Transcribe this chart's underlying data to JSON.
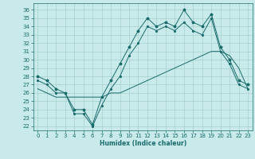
{
  "xlabel": "Humidex (Indice chaleur)",
  "ylabel": "",
  "bg_color": "#c8eaea",
  "line_color": "#1a6b6b",
  "grid_color": "#a8d0d0",
  "x_ticks": [
    0,
    1,
    2,
    3,
    4,
    5,
    6,
    7,
    8,
    9,
    10,
    11,
    12,
    13,
    14,
    15,
    16,
    17,
    18,
    19,
    20,
    21,
    22,
    23
  ],
  "y_ticks": [
    22,
    23,
    24,
    25,
    26,
    27,
    28,
    29,
    30,
    31,
    32,
    33,
    34,
    35,
    36
  ],
  "ylim": [
    21.5,
    36.8
  ],
  "xlim": [
    -0.5,
    23.5
  ],
  "series1_x": [
    0,
    1,
    2,
    3,
    4,
    5,
    6,
    7,
    8,
    9,
    10,
    11,
    12,
    13,
    14,
    15,
    16,
    17,
    18,
    19,
    20,
    21,
    22,
    23
  ],
  "series1_y": [
    28.0,
    27.5,
    26.5,
    26.0,
    24.0,
    24.0,
    22.2,
    25.5,
    27.5,
    29.5,
    31.5,
    33.5,
    35.0,
    34.0,
    34.5,
    34.0,
    36.0,
    34.5,
    34.0,
    35.5,
    31.5,
    30.0,
    27.5,
    27.0
  ],
  "series2_x": [
    0,
    1,
    2,
    3,
    4,
    5,
    6,
    7,
    8,
    9,
    10,
    11,
    12,
    13,
    14,
    15,
    16,
    17,
    18,
    19,
    20,
    21,
    22,
    23
  ],
  "series2_y": [
    27.5,
    27.0,
    26.0,
    26.0,
    23.5,
    23.5,
    22.0,
    24.5,
    26.5,
    28.0,
    30.5,
    32.0,
    34.0,
    33.5,
    34.0,
    33.5,
    34.5,
    33.5,
    33.0,
    35.0,
    31.0,
    29.5,
    27.0,
    26.5
  ],
  "series3_x": [
    0,
    1,
    2,
    3,
    4,
    5,
    6,
    7,
    8,
    9,
    10,
    11,
    12,
    13,
    14,
    15,
    16,
    17,
    18,
    19,
    20,
    21,
    22,
    23
  ],
  "series3_y": [
    26.5,
    26.0,
    25.5,
    25.5,
    25.5,
    25.5,
    25.5,
    25.5,
    26.0,
    26.0,
    26.5,
    27.0,
    27.5,
    28.0,
    28.5,
    29.0,
    29.5,
    30.0,
    30.5,
    31.0,
    31.0,
    30.5,
    29.0,
    26.5
  ]
}
